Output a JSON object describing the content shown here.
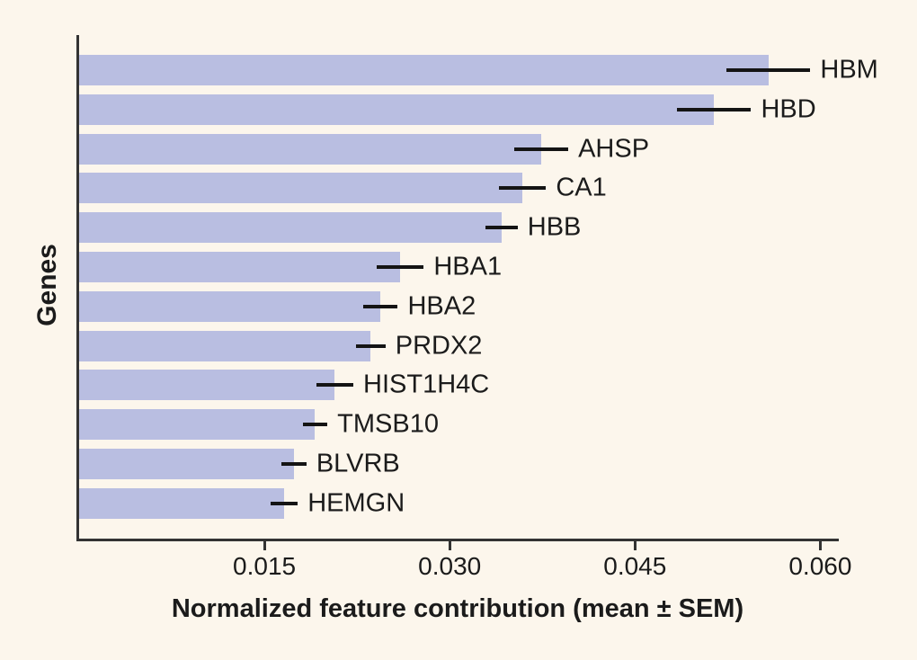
{
  "chart_data": {
    "type": "bar",
    "orientation": "horizontal",
    "title": "",
    "xlabel": "Normalized feature contribution (mean ± SEM)",
    "ylabel": "Genes",
    "categories": [
      "HBM",
      "HBD",
      "AHSP",
      "CA1",
      "HBB",
      "HBA1",
      "HBA2",
      "PRDX2",
      "HIST1H4C",
      "TMSB10",
      "BLVRB",
      "HEMGN"
    ],
    "series": [
      {
        "name": "Normalized feature contribution (mean)",
        "values": [
          0.0558,
          0.0514,
          0.0374,
          0.0359,
          0.0342,
          0.026,
          0.0244,
          0.0236,
          0.0207,
          0.0191,
          0.0174,
          0.0166
        ],
        "errors": [
          0.0034,
          0.003,
          0.0022,
          0.0019,
          0.0013,
          0.0019,
          0.0014,
          0.0012,
          0.0015,
          0.001,
          0.001,
          0.0011
        ]
      }
    ],
    "xlim": [
      0,
      0.0615
    ],
    "xticks": {
      "values": [
        0.015,
        0.03,
        0.045,
        0.06
      ],
      "labels": [
        "0.015",
        "0.030",
        "0.045",
        "0.060"
      ]
    },
    "grid": false,
    "legend": "none",
    "error_bar_style": "horizontal line, no caps",
    "colors": {
      "background": "#FCF6EC",
      "bar": "#B9BEE1",
      "spine": "#333333",
      "error_bar": "#141414",
      "text": "#1B1B1B"
    }
  }
}
